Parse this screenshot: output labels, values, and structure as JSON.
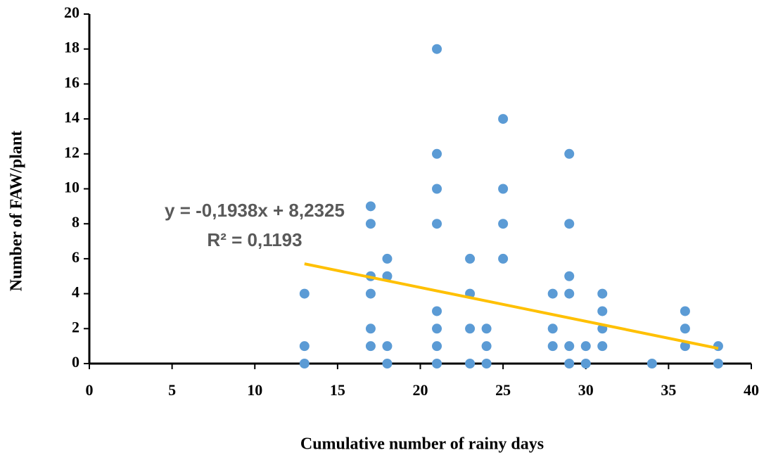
{
  "chart_data": {
    "type": "scatter",
    "x_label": "Cumulative number of rainy days",
    "y_label": "Number of FAW/plant",
    "xlim": [
      0,
      40
    ],
    "xticks": [
      0,
      5,
      10,
      15,
      20,
      25,
      30,
      35,
      40
    ],
    "ylim": [
      0,
      20
    ],
    "yticks": [
      0,
      2,
      4,
      6,
      8,
      10,
      12,
      14,
      16,
      18,
      20
    ],
    "color": "#5b9bd5",
    "x": [
      13,
      13,
      13,
      17,
      17,
      17,
      17,
      17,
      17,
      18,
      18,
      18,
      18,
      21,
      21,
      21,
      21,
      21,
      21,
      21,
      21,
      23,
      23,
      23,
      23,
      24,
      24,
      24,
      25,
      25,
      25,
      25,
      28,
      28,
      28,
      29,
      29,
      29,
      29,
      29,
      29,
      30,
      30,
      31,
      31,
      31,
      31,
      34,
      36,
      36,
      36,
      38,
      38
    ],
    "values": [
      0,
      1,
      4,
      1,
      2,
      4,
      5,
      8,
      9,
      0,
      1,
      5,
      6,
      0,
      1,
      2,
      3,
      8,
      10,
      12,
      18,
      0,
      2,
      4,
      6,
      0,
      1,
      2,
      6,
      8,
      10,
      14,
      1,
      2,
      4,
      0,
      1,
      4,
      5,
      8,
      12,
      0,
      1,
      1,
      2,
      3,
      4,
      0,
      1,
      2,
      3,
      0,
      1
    ],
    "trendline": {
      "x": [
        13,
        38
      ],
      "values": [
        5.71,
        0.87
      ],
      "color": "#ffc000"
    },
    "equation": "y = -0,1938x + 8,2325",
    "r_squared": "R² = 0,1193"
  }
}
